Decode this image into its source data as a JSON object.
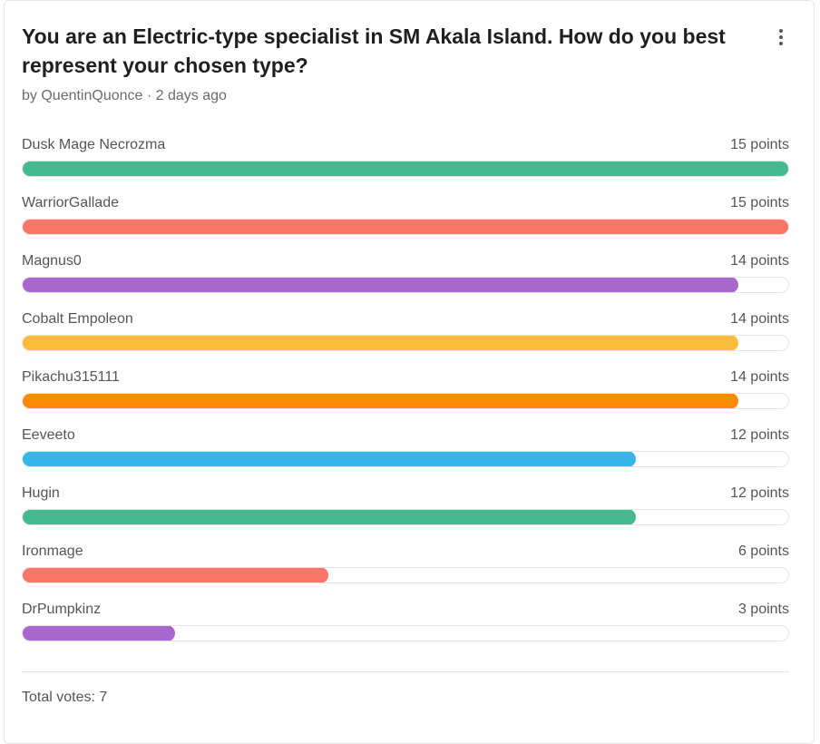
{
  "poll": {
    "title": "You are an Electric-type specialist in SM Akala Island. How do you best represent your chosen type?",
    "meta": "by QuentinQuonce · 2 days ago",
    "menu_icon": "more-vertical-icon",
    "max_points": 15,
    "options": [
      {
        "label": "Dusk Mage Necrozma",
        "points": 15,
        "points_text": "15 points",
        "color": "#43b98e"
      },
      {
        "label": "WarriorGallade",
        "points": 15,
        "points_text": "15 points",
        "color": "#fc7566"
      },
      {
        "label": "Magnus0",
        "points": 14,
        "points_text": "14 points",
        "color": "#a967cd"
      },
      {
        "label": "Cobalt Empoleon",
        "points": 14,
        "points_text": "14 points",
        "color": "#fbbb3b"
      },
      {
        "label": "Pikachu315111",
        "points": 14,
        "points_text": "14 points",
        "color": "#fd8a04"
      },
      {
        "label": "Eeveeto",
        "points": 12,
        "points_text": "12 points",
        "color": "#36b6e6"
      },
      {
        "label": "Hugin",
        "points": 12,
        "points_text": "12 points",
        "color": "#43b98e"
      },
      {
        "label": "Ironmage",
        "points": 6,
        "points_text": "6 points",
        "color": "#fc7566"
      },
      {
        "label": "DrPumpkinz",
        "points": 3,
        "points_text": "3 points",
        "color": "#a967cd"
      }
    ],
    "total_votes": "Total votes: 7"
  }
}
